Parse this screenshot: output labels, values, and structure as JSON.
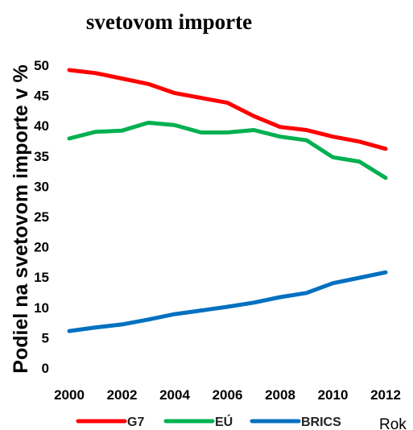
{
  "chart_data": {
    "type": "line",
    "title": "svetovom importe",
    "xlabel": "Rok",
    "ylabel": "Podiel na svetovom importe v %",
    "x": [
      2000,
      2001,
      2002,
      2003,
      2004,
      2005,
      2006,
      2007,
      2008,
      2009,
      2010,
      2011,
      2012
    ],
    "x_ticks": [
      "2000",
      "2002",
      "2004",
      "2006",
      "2008",
      "2010",
      "2012"
    ],
    "y_ticks": [
      "0",
      "5",
      "10",
      "15",
      "20",
      "25",
      "30",
      "35",
      "40",
      "45",
      "50"
    ],
    "ylim": [
      0,
      50
    ],
    "xlim": [
      2000,
      2012
    ],
    "grid": false,
    "legend_position": "bottom",
    "series": [
      {
        "name": "G7",
        "color": "#ff0000",
        "values": [
          49.2,
          48.7,
          47.8,
          46.9,
          45.4,
          44.6,
          43.8,
          41.6,
          39.8,
          39.3,
          38.2,
          37.4,
          36.2
        ]
      },
      {
        "name": "EÚ",
        "color": "#00b050",
        "values": [
          37.9,
          39.0,
          39.2,
          40.5,
          40.1,
          38.9,
          38.9,
          39.3,
          38.2,
          37.6,
          34.8,
          34.1,
          31.4
        ]
      },
      {
        "name": "BRICS",
        "color": "#0070c0",
        "values": [
          6.1,
          6.7,
          7.2,
          8.0,
          8.9,
          9.5,
          10.1,
          10.8,
          11.7,
          12.4,
          14.0,
          14.9,
          15.8
        ]
      }
    ]
  }
}
